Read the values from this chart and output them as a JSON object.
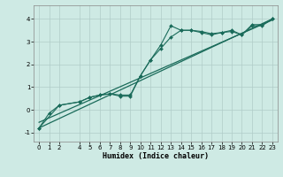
{
  "xlabel": "Humidex (Indice chaleur)",
  "ylabel": "",
  "bg_color": "#ceeae4",
  "line_color": "#1a6b5a",
  "xlim": [
    -0.5,
    23.5
  ],
  "ylim": [
    -1.4,
    4.6
  ],
  "yticks": [
    -1,
    0,
    1,
    2,
    3,
    4
  ],
  "xticks": [
    0,
    1,
    2,
    4,
    5,
    6,
    7,
    8,
    9,
    10,
    11,
    12,
    13,
    14,
    15,
    16,
    17,
    18,
    19,
    20,
    21,
    22,
    23
  ],
  "line1_x": [
    0,
    1,
    2,
    4,
    5,
    6,
    7,
    8,
    9,
    10,
    11,
    12,
    13,
    14,
    15,
    16,
    17,
    18,
    19,
    20,
    21,
    22,
    23
  ],
  "line1_y": [
    -0.8,
    -0.15,
    0.2,
    0.35,
    0.55,
    0.65,
    0.7,
    0.65,
    0.65,
    1.5,
    2.2,
    2.85,
    3.7,
    3.5,
    3.5,
    3.4,
    3.3,
    3.4,
    3.5,
    3.3,
    3.75,
    3.75,
    4.0
  ],
  "line2_x": [
    0,
    2,
    4,
    5,
    6,
    7,
    8,
    9,
    10,
    11,
    12,
    13,
    14,
    15,
    16,
    17,
    18,
    19,
    20,
    21,
    22,
    23
  ],
  "line2_y": [
    -0.8,
    0.2,
    0.35,
    0.55,
    0.65,
    0.7,
    0.6,
    0.6,
    1.5,
    2.2,
    2.7,
    3.2,
    3.5,
    3.5,
    3.45,
    3.35,
    3.4,
    3.45,
    3.3,
    3.7,
    3.7,
    4.0
  ],
  "line3_x": [
    0,
    23
  ],
  "line3_y": [
    -0.8,
    4.0
  ],
  "line4_x": [
    0,
    23
  ],
  "line4_y": [
    -0.55,
    3.95
  ],
  "grid_color": "#b0ccc8",
  "marker": "D",
  "markersize": 2.0,
  "tick_fontsize": 5.0,
  "xlabel_fontsize": 6.0
}
